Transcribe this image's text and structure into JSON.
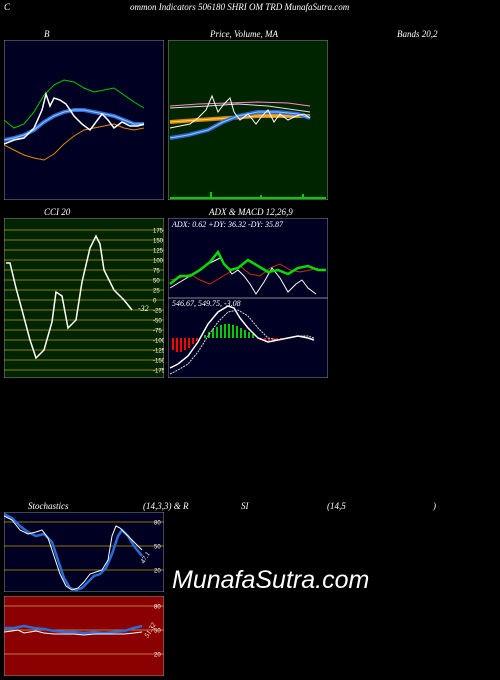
{
  "header": {
    "c_label": "C",
    "title": "ommon  Indicators 506180  SHRI OM TRD MunafaSutra.com"
  },
  "labels": {
    "bbands": "B",
    "price_ma": "Price,  Volume,  MA",
    "bands_param": "Bands 20,2",
    "cci": "CCI 20",
    "adx_macd": "ADX  & MACD 12,26,9",
    "stoch_title": "Stochastics",
    "stoch_param": "(14,3,3) & R",
    "rsi_title": "SI",
    "rsi_param": "(14,5",
    "rsi_close": ")"
  },
  "adx": {
    "text": "ADX: 0.62  +DY: 36.32  -DY: 35.87"
  },
  "macd": {
    "text": "546.67,  549.75,  -3.08"
  },
  "cci": {
    "value_label": "-32",
    "ticks": [
      "175",
      "150",
      "125",
      "100",
      "75",
      "50",
      "25",
      "0",
      "-25",
      "-50",
      "-75",
      "-100",
      "-125",
      "-150",
      "-175"
    ]
  },
  "stoch": {
    "ticks": [
      "80",
      "50",
      "20"
    ],
    "last_label": "47.1"
  },
  "rsi": {
    "ticks": [
      "80",
      "50",
      "20"
    ],
    "last_label": "51.32"
  },
  "watermark": "MunafaSutra.com",
  "colors": {
    "bbands_bg": "#000022",
    "price_bg": "#002400",
    "cci_bg": "#002400",
    "adx_bg": "#000022",
    "stoch_bg": "#000022",
    "rsi_bg": "#8b0000",
    "green": "#00cc00",
    "blue": "#2a6dd9",
    "orange": "#e08c00"
  }
}
